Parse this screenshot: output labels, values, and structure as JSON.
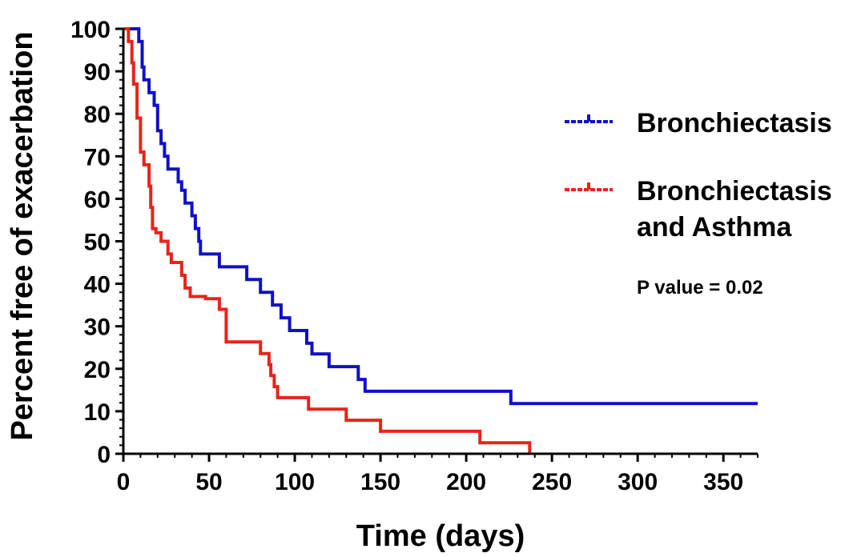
{
  "chart_data": {
    "type": "line",
    "subtype": "kaplan-meier step",
    "xlabel": "Time (days)",
    "ylabel": "Percent free of exacerbation",
    "xlim": [
      0,
      370
    ],
    "ylim": [
      0,
      100
    ],
    "x_ticks": [
      0,
      50,
      100,
      150,
      200,
      250,
      300,
      350
    ],
    "y_ticks": [
      0,
      10,
      20,
      30,
      40,
      50,
      60,
      70,
      80,
      90,
      100
    ],
    "grid": false,
    "legend_position": "right",
    "annotation": "P value = 0.02",
    "series": [
      {
        "name": "Bronchiectasis",
        "color": "#1010c8",
        "legend_lines": [
          "Bronchiectasis"
        ],
        "points": [
          [
            0,
            100
          ],
          [
            9,
            100
          ],
          [
            9,
            97
          ],
          [
            11,
            97
          ],
          [
            11,
            91
          ],
          [
            12,
            91
          ],
          [
            12,
            88
          ],
          [
            15,
            88
          ],
          [
            15,
            85
          ],
          [
            18,
            85
          ],
          [
            18,
            82
          ],
          [
            20,
            82
          ],
          [
            20,
            76
          ],
          [
            22,
            76
          ],
          [
            22,
            73
          ],
          [
            24,
            73
          ],
          [
            24,
            70
          ],
          [
            26,
            70
          ],
          [
            26,
            67
          ],
          [
            32,
            67
          ],
          [
            32,
            64
          ],
          [
            34,
            64
          ],
          [
            34,
            62
          ],
          [
            36,
            62
          ],
          [
            36,
            59
          ],
          [
            40,
            59
          ],
          [
            40,
            56
          ],
          [
            42,
            56
          ],
          [
            42,
            53
          ],
          [
            44,
            53
          ],
          [
            44,
            50
          ],
          [
            45,
            50
          ],
          [
            45,
            47
          ],
          [
            56,
            47
          ],
          [
            56,
            44
          ],
          [
            72,
            44
          ],
          [
            72,
            41
          ],
          [
            80,
            41
          ],
          [
            80,
            38
          ],
          [
            87,
            38
          ],
          [
            87,
            35
          ],
          [
            92,
            35
          ],
          [
            92,
            32
          ],
          [
            97,
            32
          ],
          [
            97,
            29
          ],
          [
            107,
            29
          ],
          [
            107,
            26
          ],
          [
            110,
            26
          ],
          [
            110,
            23.5
          ],
          [
            120,
            23.5
          ],
          [
            120,
            20.5
          ],
          [
            137,
            20.5
          ],
          [
            137,
            17.5
          ],
          [
            141,
            17.5
          ],
          [
            141,
            14.7
          ],
          [
            226,
            14.7
          ],
          [
            226,
            11.8
          ],
          [
            370,
            11.8
          ]
        ]
      },
      {
        "name": "Bronchiectasis and Asthma",
        "color": "#e8231b",
        "legend_lines": [
          "Bronchiectasis",
          "and Asthma"
        ],
        "points": [
          [
            0,
            100
          ],
          [
            3,
            100
          ],
          [
            3,
            97
          ],
          [
            5,
            97
          ],
          [
            5,
            92
          ],
          [
            6,
            92
          ],
          [
            6,
            87
          ],
          [
            8,
            87
          ],
          [
            8,
            79
          ],
          [
            10,
            79
          ],
          [
            10,
            71
          ],
          [
            12,
            71
          ],
          [
            12,
            68
          ],
          [
            15,
            68
          ],
          [
            15,
            63
          ],
          [
            16,
            63
          ],
          [
            16,
            58
          ],
          [
            17,
            58
          ],
          [
            17,
            53
          ],
          [
            19,
            53
          ],
          [
            19,
            52
          ],
          [
            22,
            52
          ],
          [
            22,
            50
          ],
          [
            26,
            50
          ],
          [
            26,
            47
          ],
          [
            28,
            47
          ],
          [
            28,
            45
          ],
          [
            34,
            45
          ],
          [
            34,
            42
          ],
          [
            36,
            42
          ],
          [
            36,
            39
          ],
          [
            39,
            39
          ],
          [
            39,
            37
          ],
          [
            48,
            37
          ],
          [
            48,
            36.5
          ],
          [
            56,
            36.5
          ],
          [
            56,
            34
          ],
          [
            60,
            34
          ],
          [
            60,
            26.3
          ],
          [
            80,
            26.3
          ],
          [
            80,
            23.6
          ],
          [
            85,
            23.6
          ],
          [
            85,
            21
          ],
          [
            86,
            21
          ],
          [
            86,
            18.4
          ],
          [
            88,
            18.4
          ],
          [
            88,
            15.8
          ],
          [
            90,
            15.8
          ],
          [
            90,
            13.2
          ],
          [
            108,
            13.2
          ],
          [
            108,
            10.5
          ],
          [
            130,
            10.5
          ],
          [
            130,
            7.9
          ],
          [
            150,
            7.9
          ],
          [
            150,
            5.3
          ],
          [
            208,
            5.3
          ],
          [
            208,
            2.6
          ],
          [
            237,
            2.6
          ],
          [
            237,
            0
          ]
        ]
      }
    ]
  }
}
